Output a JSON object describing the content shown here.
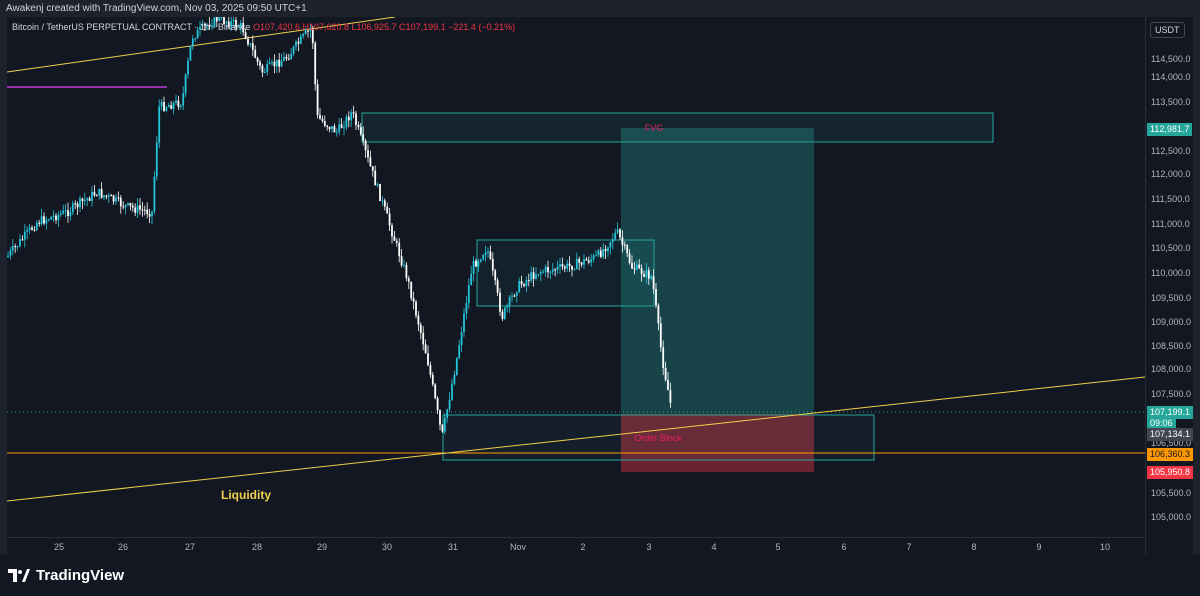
{
  "credit": "Awakenj created with TradingView.com, Nov 03, 2025 09:50 UTC+1",
  "legend": {
    "symbol": "Bitcoin / TetherUS PERPETUAL CONTRACT · 1h · Binance",
    "ohlc": "O107,420.6  H107,620.8  L106,925.7  C107,199.1  −221.4 (−0.21%)"
  },
  "currency_button": "USDT",
  "y_axis_ticks": [
    "114,500.0",
    "114,000.0",
    "113,500.0",
    "112,500.0",
    "112,000.0",
    "111,500.0",
    "111,000.0",
    "110,500.0",
    "110,000.0",
    "109,500.0",
    "109,000.0",
    "108,500.0",
    "108,000.0",
    "107,500.0",
    "106,500.0",
    "105,500.0",
    "105,000.0"
  ],
  "x_axis_ticks": [
    "25",
    "26",
    "27",
    "28",
    "29",
    "30",
    "31",
    "Nov",
    "2",
    "3",
    "4",
    "5",
    "6",
    "7",
    "8",
    "9",
    "10"
  ],
  "price_tags": {
    "fvg_top": "112,981.7",
    "last_price": "107,199.1",
    "countdown": "09:06",
    "bid": "107,134.1",
    "orange_level": "106,360.3",
    "stop": "105,950.8"
  },
  "annotations": {
    "fvg": "FVG",
    "order_block": "Order Block",
    "liquidity": "Liquidity"
  },
  "brand": "TradingView",
  "colors": {
    "background": "#131722",
    "up_candle": "#26c6da",
    "down_candle": "#ffffff",
    "fvg_box": "#26a69a",
    "target_zone": "#1f5c52",
    "stop_zone": "#8c2f3c",
    "trendline": "#f0d04a",
    "level_orange": "#ff9800",
    "level_magenta": "#e040fb",
    "last_price_tag": "#26a69a",
    "stop_tag": "#f23645"
  },
  "chart_data": {
    "type": "candlestick",
    "symbol": "Bitcoin / TetherUS PERPETUAL CONTRACT",
    "interval": "1h",
    "x": [
      "25",
      "26",
      "27",
      "28",
      "29",
      "30",
      "31",
      "Nov",
      "2",
      "3"
    ],
    "close": [
      110200,
      111600,
      114400,
      114800,
      113200,
      110200,
      107200,
      110000,
      110600,
      107199.1
    ],
    "ylim": [
      104800,
      115200
    ]
  }
}
